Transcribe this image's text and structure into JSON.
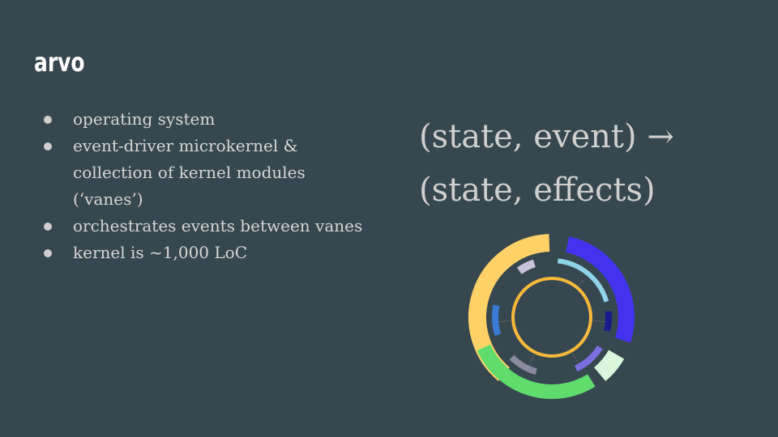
{
  "slide": {
    "title": "arvo",
    "bullets": [
      {
        "lines": [
          "operating system"
        ]
      },
      {
        "lines": [
          "event-driver microkernel &",
          "collection of kernel modules",
          "(‘vanes’)"
        ]
      },
      {
        "lines": [
          "orchestrates events between vanes"
        ]
      },
      {
        "lines": [
          "kernel is ~1,000 LoC"
        ]
      }
    ],
    "formula": {
      "line1": "(state, event) →",
      "line2": "(state, effects)"
    }
  },
  "colors": {
    "background": "#37474f",
    "text": "#d6d6d6",
    "title": "#ffffff",
    "ring_yellow": "#ffd166",
    "ring_blue": "#4433ee",
    "ring_green": "#5fdc6c",
    "ring_lightblue": "#8fd3e8",
    "ring_center": "#f6b93b"
  }
}
